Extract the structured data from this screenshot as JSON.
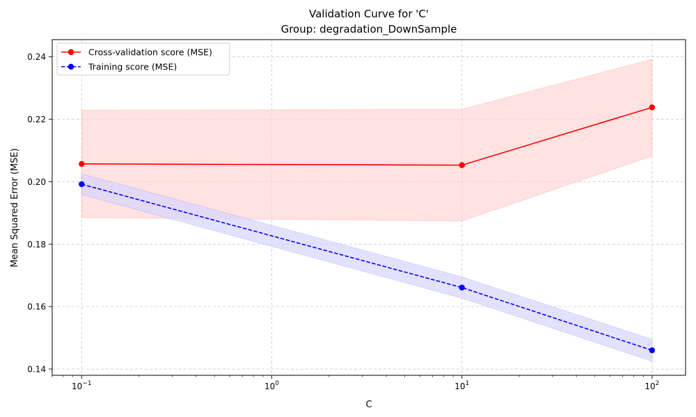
{
  "chart_data": {
    "type": "line",
    "title": "Validation Curve for 'C'",
    "subtitle": "Group: degradation_DownSample",
    "xlabel": "C",
    "ylabel": "Mean Squared Error (MSE)",
    "xscale": "log",
    "xlim": [
      0.07,
      150
    ],
    "ylim": [
      0.138,
      0.2455
    ],
    "x": [
      0.1,
      10,
      100
    ],
    "x_ticks": [
      {
        "value": 0.1,
        "base": "10",
        "exp": "−1"
      },
      {
        "value": 1,
        "base": "10",
        "exp": "0"
      },
      {
        "value": 10,
        "base": "10",
        "exp": "1"
      },
      {
        "value": 100,
        "base": "10",
        "exp": "2"
      }
    ],
    "y_ticks": [
      {
        "value": 0.14,
        "label": "0.14"
      },
      {
        "value": 0.16,
        "label": "0.16"
      },
      {
        "value": 0.18,
        "label": "0.18"
      },
      {
        "value": 0.2,
        "label": "0.20"
      },
      {
        "value": 0.22,
        "label": "0.22"
      },
      {
        "value": 0.24,
        "label": "0.24"
      }
    ],
    "grid": true,
    "legend_position": "top-left",
    "series": [
      {
        "name": "Cross-validation score (MSE)",
        "color": "#ff0000",
        "band_color": "#ffd6d6",
        "line_style": "solid",
        "values": [
          0.2057,
          0.2053,
          0.2238
        ],
        "lower": [
          0.1885,
          0.1874,
          0.2082
        ],
        "upper": [
          0.2229,
          0.2232,
          0.2392
        ]
      },
      {
        "name": "Training score (MSE)",
        "color": "#0000ff",
        "band_color": "#d6d6ff",
        "line_style": "dashed",
        "values": [
          0.1992,
          0.1661,
          0.146
        ],
        "lower": [
          0.1959,
          0.1627,
          0.1425
        ],
        "upper": [
          0.2025,
          0.1695,
          0.1495
        ]
      }
    ]
  }
}
